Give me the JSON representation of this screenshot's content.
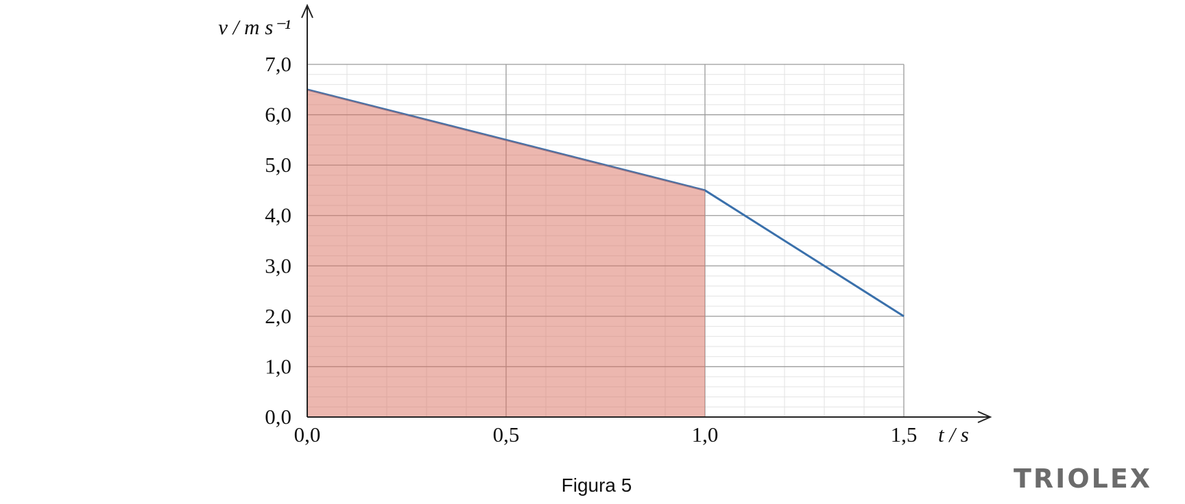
{
  "chart_data": {
    "type": "line",
    "x_label": "t / s",
    "y_label": "v / m s⁻¹",
    "caption": "Figura 5",
    "watermark": "TRIOLEX",
    "x": [
      0,
      1.0,
      1.5
    ],
    "series": [
      {
        "name": "v",
        "color": "#3a70ab",
        "values": [
          6.5,
          4.5,
          2.0
        ]
      }
    ],
    "area_xlim": [
      0,
      1.0
    ],
    "area_color": "#d9705f",
    "xlim": [
      0,
      1.5
    ],
    "ylim": [
      0,
      7
    ],
    "xticks": [
      {
        "value": 0,
        "label": "0,0"
      },
      {
        "value": 0.5,
        "label": "0,5"
      },
      {
        "value": 1.0,
        "label": "1,0"
      },
      {
        "value": 1.5,
        "label": "1,5"
      }
    ],
    "yticks": [
      {
        "value": 0,
        "label": "0,0"
      },
      {
        "value": 1,
        "label": "1,0"
      },
      {
        "value": 2,
        "label": "2,0"
      },
      {
        "value": 3,
        "label": "3,0"
      },
      {
        "value": 4,
        "label": "4,0"
      },
      {
        "value": 5,
        "label": "5,0"
      },
      {
        "value": 6,
        "label": "6,0"
      },
      {
        "value": 7,
        "label": "7,0"
      }
    ],
    "grid": true,
    "minor_divisions": 5
  }
}
